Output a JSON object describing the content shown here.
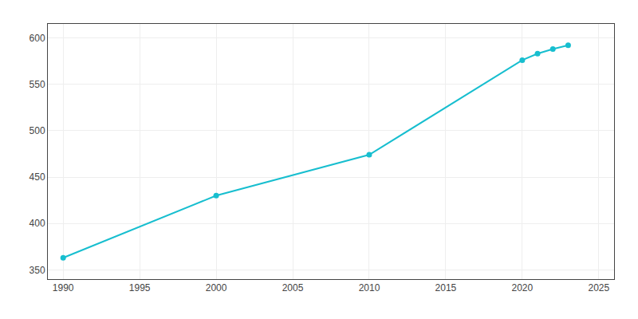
{
  "chart_data": {
    "type": "line",
    "x": [
      1990,
      2000,
      2010,
      2020,
      2021,
      2022,
      2023
    ],
    "values": [
      363,
      430,
      474,
      576,
      583,
      588,
      592
    ],
    "color": "#17becf",
    "marker": "circle",
    "xlim": [
      1989,
      2026
    ],
    "ylim": [
      340,
      615
    ],
    "xticks": [
      1990,
      1995,
      2000,
      2005,
      2010,
      2015,
      2020,
      2025
    ],
    "yticks": [
      350,
      400,
      450,
      500,
      550,
      600
    ],
    "grid": true
  }
}
